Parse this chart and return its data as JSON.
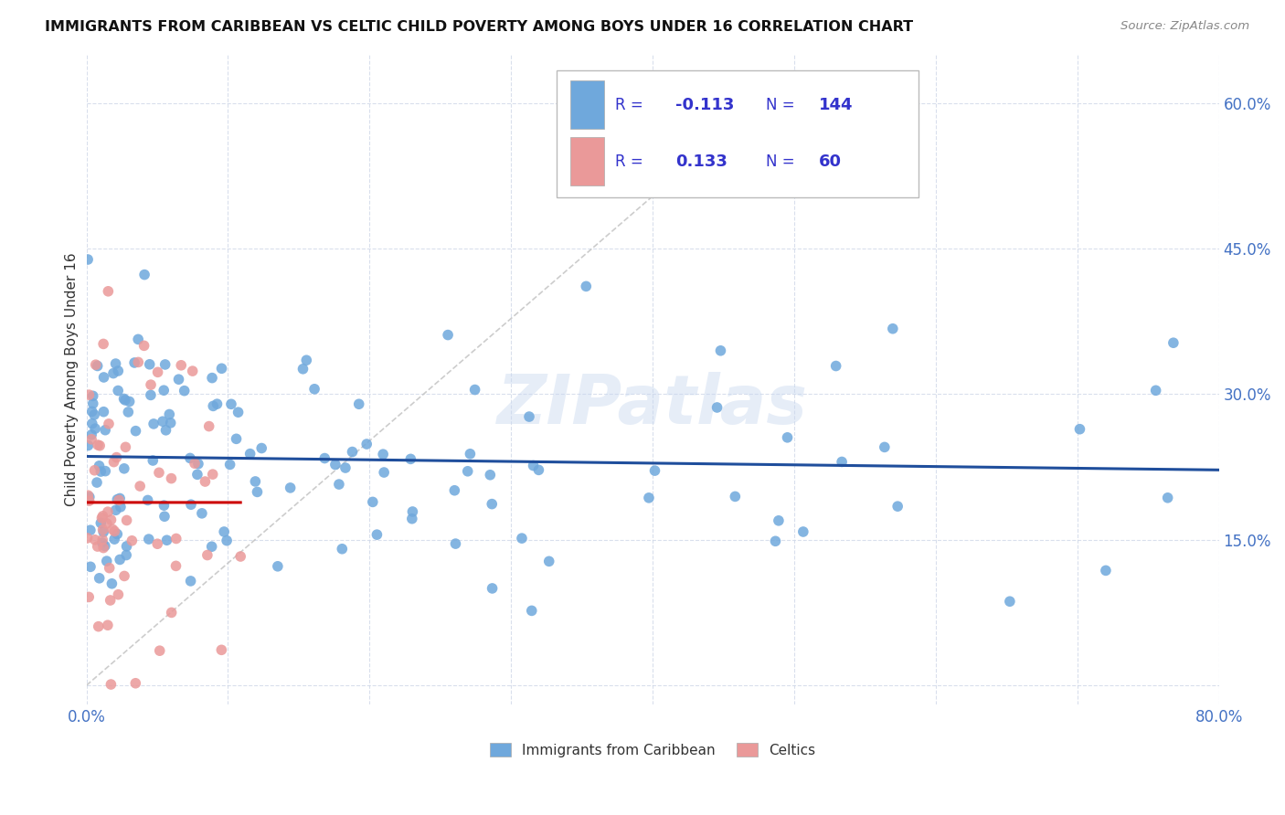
{
  "title": "IMMIGRANTS FROM CARIBBEAN VS CELTIC CHILD POVERTY AMONG BOYS UNDER 16 CORRELATION CHART",
  "source": "Source: ZipAtlas.com",
  "ylabel": "Child Poverty Among Boys Under 16",
  "xlim": [
    0.0,
    0.8
  ],
  "ylim": [
    -0.02,
    0.65
  ],
  "caribbean_color": "#6fa8dc",
  "celtic_color": "#ea9999",
  "caribbean_trend_color": "#1f4e9c",
  "celtic_trend_color": "#cc0000",
  "diagonal_color": "#c0c0c0",
  "R_caribbean": -0.113,
  "N_caribbean": 144,
  "R_celtic": 0.133,
  "N_celtic": 60,
  "watermark": "ZIPatlas",
  "legend_labels": [
    "Immigrants from Caribbean",
    "Celtics"
  ],
  "caribbean_seed": 42,
  "celtic_seed": 7,
  "legend_color": "#3333cc"
}
